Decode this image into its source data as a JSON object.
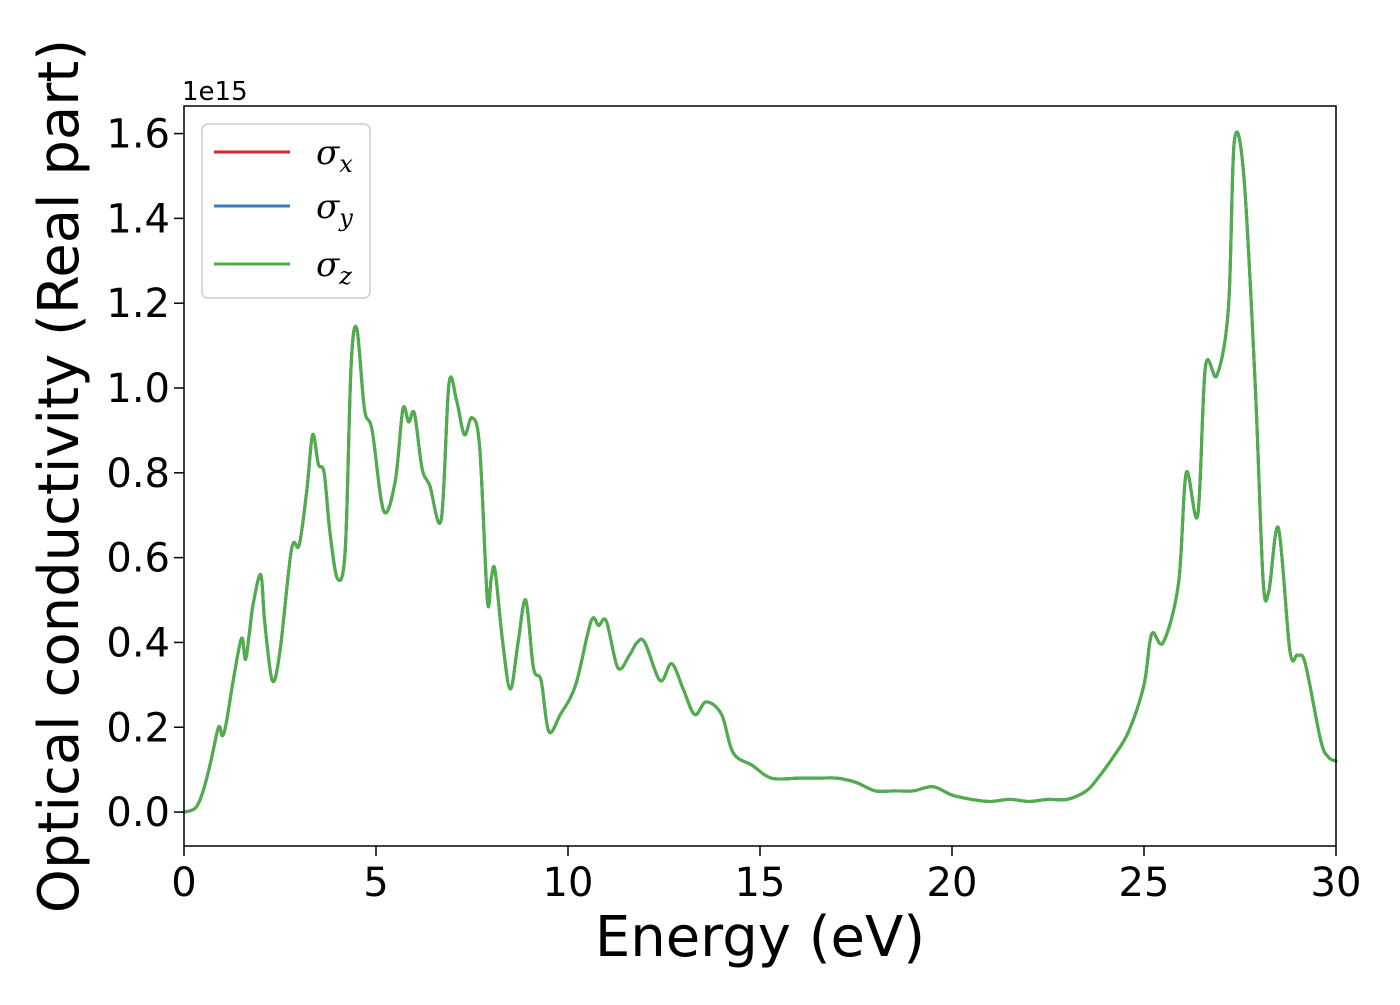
{
  "chart_data": {
    "type": "line",
    "title": "",
    "xlabel": "Energy (eV)",
    "ylabel": "Optical conductivity (Real part)",
    "y_offset_label": "1e15",
    "xlim": [
      0,
      30
    ],
    "ylim": [
      -0.08,
      1.665
    ],
    "x_ticks": [
      0,
      5,
      10,
      15,
      20,
      25,
      30
    ],
    "x_tick_labels": [
      "0",
      "5",
      "10",
      "15",
      "20",
      "25",
      "30"
    ],
    "y_ticks": [
      0.0,
      0.2,
      0.4,
      0.6,
      0.8,
      1.0,
      1.2,
      1.4,
      1.6
    ],
    "y_tick_labels": [
      "0.0",
      "0.2",
      "0.4",
      "0.6",
      "0.8",
      "1.0",
      "1.2",
      "1.4",
      "1.6"
    ],
    "grid": false,
    "legend_position": "upper-left",
    "x": [
      0,
      0.3,
      0.5,
      0.7,
      0.9,
      1.0,
      1.1,
      1.3,
      1.5,
      1.6,
      1.7,
      1.8,
      2.0,
      2.1,
      2.3,
      2.5,
      2.8,
      3.0,
      3.2,
      3.35,
      3.5,
      3.65,
      3.8,
      4.0,
      4.2,
      4.35,
      4.5,
      4.7,
      4.9,
      5.2,
      5.5,
      5.7,
      5.85,
      6.0,
      6.2,
      6.4,
      6.7,
      6.9,
      7.1,
      7.3,
      7.5,
      7.7,
      7.9,
      8.0,
      8.1,
      8.3,
      8.5,
      8.7,
      8.9,
      9.1,
      9.3,
      9.5,
      9.8,
      10.2,
      10.6,
      10.8,
      11.0,
      11.3,
      11.6,
      11.8,
      12.0,
      12.4,
      12.7,
      13.0,
      13.3,
      13.6,
      14.0,
      14.3,
      14.8,
      15.3,
      16.0,
      16.5,
      17.0,
      17.5,
      18.0,
      18.5,
      19.0,
      19.5,
      20.0,
      20.5,
      21.0,
      21.5,
      22.0,
      22.5,
      23.0,
      23.5,
      23.8,
      24.2,
      24.6,
      25.0,
      25.2,
      25.5,
      25.9,
      26.1,
      26.4,
      26.6,
      26.9,
      27.2,
      27.35,
      27.6,
      27.9,
      28.1,
      28.25,
      28.5,
      28.8,
      29.0,
      29.2,
      29.6,
      29.8,
      30.0
    ],
    "series": [
      {
        "name": "σx",
        "color": "#d62728",
        "values": [
          0.0,
          0.01,
          0.05,
          0.12,
          0.2,
          0.18,
          0.21,
          0.32,
          0.41,
          0.36,
          0.42,
          0.49,
          0.56,
          0.45,
          0.31,
          0.38,
          0.62,
          0.63,
          0.76,
          0.89,
          0.82,
          0.8,
          0.66,
          0.55,
          0.62,
          1.05,
          1.14,
          0.95,
          0.9,
          0.71,
          0.78,
          0.95,
          0.92,
          0.94,
          0.81,
          0.77,
          0.69,
          1.01,
          0.97,
          0.89,
          0.93,
          0.86,
          0.5,
          0.55,
          0.57,
          0.4,
          0.29,
          0.4,
          0.5,
          0.34,
          0.31,
          0.19,
          0.23,
          0.3,
          0.45,
          0.44,
          0.45,
          0.34,
          0.37,
          0.4,
          0.4,
          0.31,
          0.35,
          0.29,
          0.23,
          0.26,
          0.23,
          0.14,
          0.11,
          0.08,
          0.08,
          0.08,
          0.08,
          0.07,
          0.05,
          0.05,
          0.05,
          0.06,
          0.04,
          0.03,
          0.025,
          0.03,
          0.025,
          0.03,
          0.03,
          0.05,
          0.08,
          0.13,
          0.19,
          0.3,
          0.42,
          0.4,
          0.54,
          0.8,
          0.7,
          1.05,
          1.03,
          1.19,
          1.58,
          1.5,
          1.0,
          0.55,
          0.52,
          0.67,
          0.38,
          0.37,
          0.35,
          0.17,
          0.13,
          0.12
        ]
      },
      {
        "name": "σy",
        "color": "#3b7cb4",
        "values": [
          0.0,
          0.01,
          0.05,
          0.12,
          0.2,
          0.18,
          0.21,
          0.32,
          0.41,
          0.36,
          0.42,
          0.49,
          0.56,
          0.45,
          0.31,
          0.38,
          0.62,
          0.63,
          0.76,
          0.89,
          0.82,
          0.8,
          0.66,
          0.55,
          0.62,
          1.05,
          1.14,
          0.95,
          0.9,
          0.71,
          0.78,
          0.95,
          0.92,
          0.94,
          0.81,
          0.77,
          0.69,
          1.01,
          0.97,
          0.89,
          0.93,
          0.86,
          0.5,
          0.55,
          0.57,
          0.4,
          0.29,
          0.4,
          0.5,
          0.34,
          0.31,
          0.19,
          0.23,
          0.3,
          0.45,
          0.44,
          0.45,
          0.34,
          0.37,
          0.4,
          0.4,
          0.31,
          0.35,
          0.29,
          0.23,
          0.26,
          0.23,
          0.14,
          0.11,
          0.08,
          0.08,
          0.08,
          0.08,
          0.07,
          0.05,
          0.05,
          0.05,
          0.06,
          0.04,
          0.03,
          0.025,
          0.03,
          0.025,
          0.03,
          0.03,
          0.05,
          0.08,
          0.13,
          0.19,
          0.3,
          0.42,
          0.4,
          0.54,
          0.8,
          0.7,
          1.05,
          1.03,
          1.19,
          1.58,
          1.5,
          1.0,
          0.55,
          0.52,
          0.67,
          0.38,
          0.37,
          0.35,
          0.17,
          0.13,
          0.12
        ]
      },
      {
        "name": "σz",
        "color": "#4daf4a",
        "values": [
          0.0,
          0.01,
          0.05,
          0.12,
          0.2,
          0.18,
          0.21,
          0.32,
          0.41,
          0.36,
          0.42,
          0.49,
          0.56,
          0.45,
          0.31,
          0.38,
          0.62,
          0.63,
          0.76,
          0.89,
          0.82,
          0.8,
          0.66,
          0.55,
          0.62,
          1.05,
          1.14,
          0.95,
          0.9,
          0.71,
          0.78,
          0.95,
          0.92,
          0.94,
          0.81,
          0.77,
          0.69,
          1.01,
          0.97,
          0.89,
          0.93,
          0.86,
          0.5,
          0.55,
          0.57,
          0.4,
          0.29,
          0.4,
          0.5,
          0.34,
          0.31,
          0.19,
          0.23,
          0.3,
          0.45,
          0.44,
          0.45,
          0.34,
          0.37,
          0.4,
          0.4,
          0.31,
          0.35,
          0.29,
          0.23,
          0.26,
          0.23,
          0.14,
          0.11,
          0.08,
          0.08,
          0.08,
          0.08,
          0.07,
          0.05,
          0.05,
          0.05,
          0.06,
          0.04,
          0.03,
          0.025,
          0.03,
          0.025,
          0.03,
          0.03,
          0.05,
          0.08,
          0.13,
          0.19,
          0.3,
          0.42,
          0.4,
          0.54,
          0.8,
          0.7,
          1.05,
          1.03,
          1.19,
          1.58,
          1.5,
          1.0,
          0.55,
          0.52,
          0.67,
          0.38,
          0.37,
          0.35,
          0.17,
          0.13,
          0.12
        ]
      }
    ],
    "legend": [
      {
        "symbol": "σ",
        "subscript": "x",
        "color": "#d62728"
      },
      {
        "symbol": "σ",
        "subscript": "y",
        "color": "#3b7cb4"
      },
      {
        "symbol": "σ",
        "subscript": "z",
        "color": "#4daf4a"
      }
    ]
  }
}
